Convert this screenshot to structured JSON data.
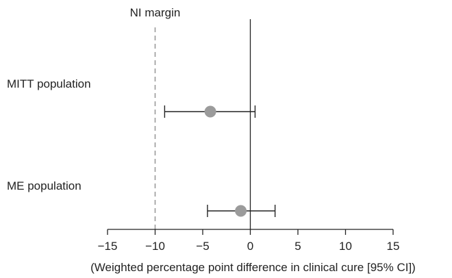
{
  "chart_data": {
    "type": "forest",
    "xlabel": "(Weighted percentage point difference in clinical cure [95% CI])",
    "xlim": [
      -15,
      15
    ],
    "xticks": [
      -15,
      -10,
      -5,
      0,
      5,
      10,
      15
    ],
    "xtick_labels": [
      "−15",
      "−10",
      "−5",
      "0",
      "5",
      "10",
      "15"
    ],
    "reference_line": 0,
    "ni_margin": {
      "label": "NI margin",
      "value": -10
    },
    "rows": [
      {
        "label": "MITT population",
        "estimate": -4.2,
        "ci_low": -9.0,
        "ci_high": 0.5
      },
      {
        "label": "ME population",
        "estimate": -1.0,
        "ci_low": -4.5,
        "ci_high": 2.6
      }
    ],
    "colors": {
      "point": "#9b9b9b",
      "ni_line": "#9a9a9a",
      "axis": "#222222"
    }
  }
}
